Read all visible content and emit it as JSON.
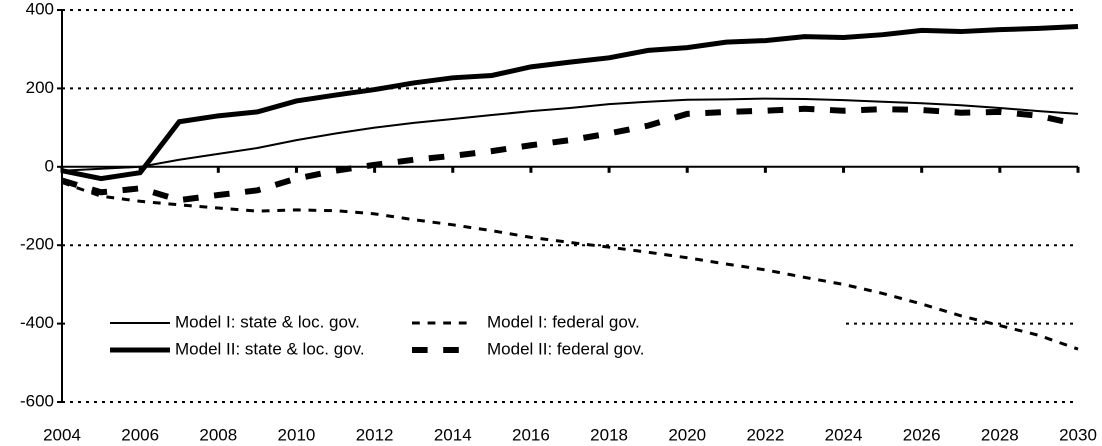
{
  "chart_data": {
    "type": "line",
    "x": [
      2004,
      2005,
      2006,
      2007,
      2008,
      2009,
      2010,
      2011,
      2012,
      2013,
      2014,
      2015,
      2016,
      2017,
      2018,
      2019,
      2020,
      2021,
      2022,
      2023,
      2024,
      2025,
      2026,
      2027,
      2028,
      2029,
      2030
    ],
    "series": [
      {
        "name": "Model I: state & loc. gov.",
        "color": "#000000",
        "style": "solid",
        "width": 2,
        "values": [
          -10,
          -5,
          0,
          18,
          33,
          48,
          68,
          85,
          100,
          112,
          122,
          132,
          142,
          150,
          160,
          166,
          171,
          172,
          174,
          173,
          170,
          166,
          162,
          157,
          150,
          142,
          135
        ]
      },
      {
        "name": "Model I: federal gov.",
        "color": "#000000",
        "style": "dashed",
        "width": 3,
        "values": [
          -40,
          -75,
          -88,
          -97,
          -105,
          -113,
          -110,
          -112,
          -120,
          -135,
          -148,
          -163,
          -180,
          -193,
          -205,
          -218,
          -232,
          -248,
          -263,
          -282,
          -300,
          -323,
          -350,
          -380,
          -405,
          -430,
          -465
        ]
      },
      {
        "name": "Model II: state & loc. gov.",
        "color": "#000000",
        "style": "solid",
        "width": 5,
        "values": [
          -10,
          -30,
          -15,
          115,
          130,
          140,
          168,
          183,
          197,
          214,
          227,
          233,
          255,
          267,
          278,
          297,
          304,
          318,
          322,
          332,
          330,
          337,
          348,
          345,
          350,
          353,
          358
        ]
      },
      {
        "name": "Model II: federal gov.",
        "color": "#000000",
        "style": "dashed",
        "width": 6,
        "values": [
          -35,
          -65,
          -55,
          -85,
          -72,
          -60,
          -30,
          -10,
          5,
          18,
          28,
          40,
          55,
          68,
          85,
          105,
          135,
          140,
          143,
          148,
          143,
          147,
          145,
          138,
          140,
          130,
          108
        ]
      }
    ],
    "xlim": [
      2004,
      2030
    ],
    "xticks": [
      2004,
      2006,
      2008,
      2010,
      2012,
      2014,
      2016,
      2018,
      2020,
      2022,
      2024,
      2026,
      2028,
      2030
    ],
    "ylim": [
      -600,
      400
    ],
    "yticks": [
      -600,
      -400,
      -200,
      0,
      200,
      400
    ],
    "grid": true,
    "legend": "lower left"
  }
}
